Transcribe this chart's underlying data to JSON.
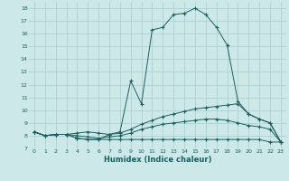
{
  "xlabel": "Humidex (Indice chaleur)",
  "background_color": "#cce8e8",
  "line_color": "#1a6060",
  "grid_color": "#aacccc",
  "xlim": [
    -0.5,
    23.5
  ],
  "ylim": [
    7.0,
    18.5
  ],
  "xticks": [
    0,
    1,
    2,
    3,
    4,
    5,
    6,
    7,
    8,
    9,
    10,
    11,
    12,
    13,
    14,
    15,
    16,
    17,
    18,
    19,
    20,
    21,
    22,
    23
  ],
  "yticks": [
    7,
    8,
    9,
    10,
    11,
    12,
    13,
    14,
    15,
    16,
    17,
    18
  ],
  "series": [
    {
      "x": [
        0,
        1,
        2,
        3,
        4,
        5,
        6,
        7,
        8,
        9,
        10,
        11,
        12,
        13,
        14,
        15,
        16,
        17,
        18,
        19,
        20,
        21,
        22,
        23
      ],
      "y": [
        8.3,
        8.0,
        8.1,
        8.1,
        7.8,
        7.7,
        7.7,
        8.1,
        8.3,
        12.3,
        10.5,
        16.3,
        16.5,
        17.5,
        17.6,
        18.0,
        17.5,
        16.5,
        15.1,
        10.7,
        9.7,
        9.3,
        9.0,
        7.5
      ]
    },
    {
      "x": [
        0,
        1,
        2,
        3,
        4,
        5,
        6,
        7,
        8,
        9,
        10,
        11,
        12,
        13,
        14,
        15,
        16,
        17,
        18,
        19,
        20,
        21,
        22,
        23
      ],
      "y": [
        8.3,
        8.0,
        8.1,
        8.1,
        7.8,
        7.7,
        7.7,
        7.7,
        7.7,
        7.7,
        7.7,
        7.7,
        7.7,
        7.7,
        7.7,
        7.7,
        7.7,
        7.7,
        7.7,
        7.7,
        7.7,
        7.7,
        7.5,
        7.5
      ]
    },
    {
      "x": [
        0,
        1,
        2,
        3,
        4,
        5,
        6,
        7,
        8,
        9,
        10,
        11,
        12,
        13,
        14,
        15,
        16,
        17,
        18,
        19,
        20,
        21,
        22,
        23
      ],
      "y": [
        8.3,
        8.0,
        8.1,
        8.1,
        8.2,
        8.3,
        8.2,
        8.1,
        8.2,
        8.5,
        8.9,
        9.2,
        9.5,
        9.7,
        9.9,
        10.1,
        10.2,
        10.3,
        10.4,
        10.5,
        9.7,
        9.3,
        9.0,
        7.5
      ]
    },
    {
      "x": [
        0,
        1,
        2,
        3,
        4,
        5,
        6,
        7,
        8,
        9,
        10,
        11,
        12,
        13,
        14,
        15,
        16,
        17,
        18,
        19,
        20,
        21,
        22,
        23
      ],
      "y": [
        8.3,
        8.0,
        8.1,
        8.1,
        8.0,
        7.9,
        7.8,
        7.9,
        8.0,
        8.2,
        8.5,
        8.7,
        8.9,
        9.0,
        9.1,
        9.2,
        9.3,
        9.3,
        9.2,
        9.0,
        8.8,
        8.7,
        8.5,
        7.5
      ]
    }
  ]
}
